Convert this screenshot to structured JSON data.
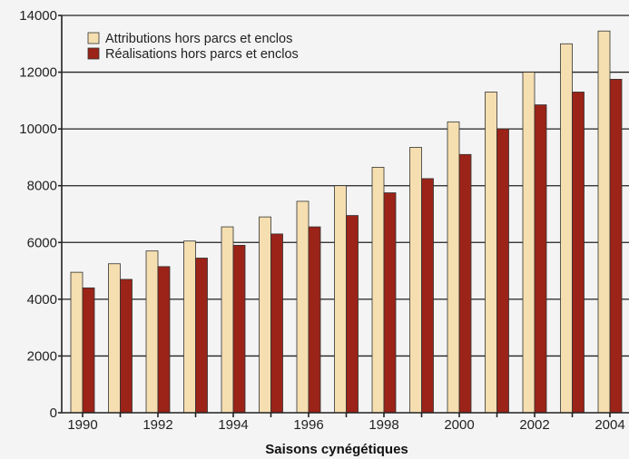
{
  "chart_data": {
    "type": "bar",
    "xlabel": "Saisons cynégétiques",
    "ylabel": "",
    "ylim": [
      0,
      14000
    ],
    "y_ticks": [
      0,
      2000,
      4000,
      6000,
      8000,
      10000,
      12000,
      14000
    ],
    "categories": [
      "1990",
      "1991",
      "1992",
      "1993",
      "1994",
      "1995",
      "1996",
      "1997",
      "1998",
      "1999",
      "2000",
      "2001",
      "2002",
      "2003",
      "2004"
    ],
    "x_tick_labels": [
      "1990",
      "",
      "1992",
      "",
      "1994",
      "",
      "1996",
      "",
      "1998",
      "",
      "2000",
      "",
      "2002",
      "",
      "2004"
    ],
    "grid": true,
    "legend_position": "top-left",
    "series": [
      {
        "name": "Attributions hors parcs et enclos",
        "color": "#f5deb0",
        "values": [
          4950,
          5250,
          5700,
          6050,
          6550,
          6900,
          7450,
          8000,
          8650,
          9350,
          10250,
          11300,
          12000,
          13000,
          13450
        ]
      },
      {
        "name": "Réalisations hors parcs et enclos",
        "color": "#9b2318",
        "values": [
          4400,
          4700,
          5150,
          5450,
          5900,
          6300,
          6550,
          6950,
          7750,
          8250,
          9100,
          10000,
          10850,
          11300,
          11750
        ]
      }
    ]
  }
}
